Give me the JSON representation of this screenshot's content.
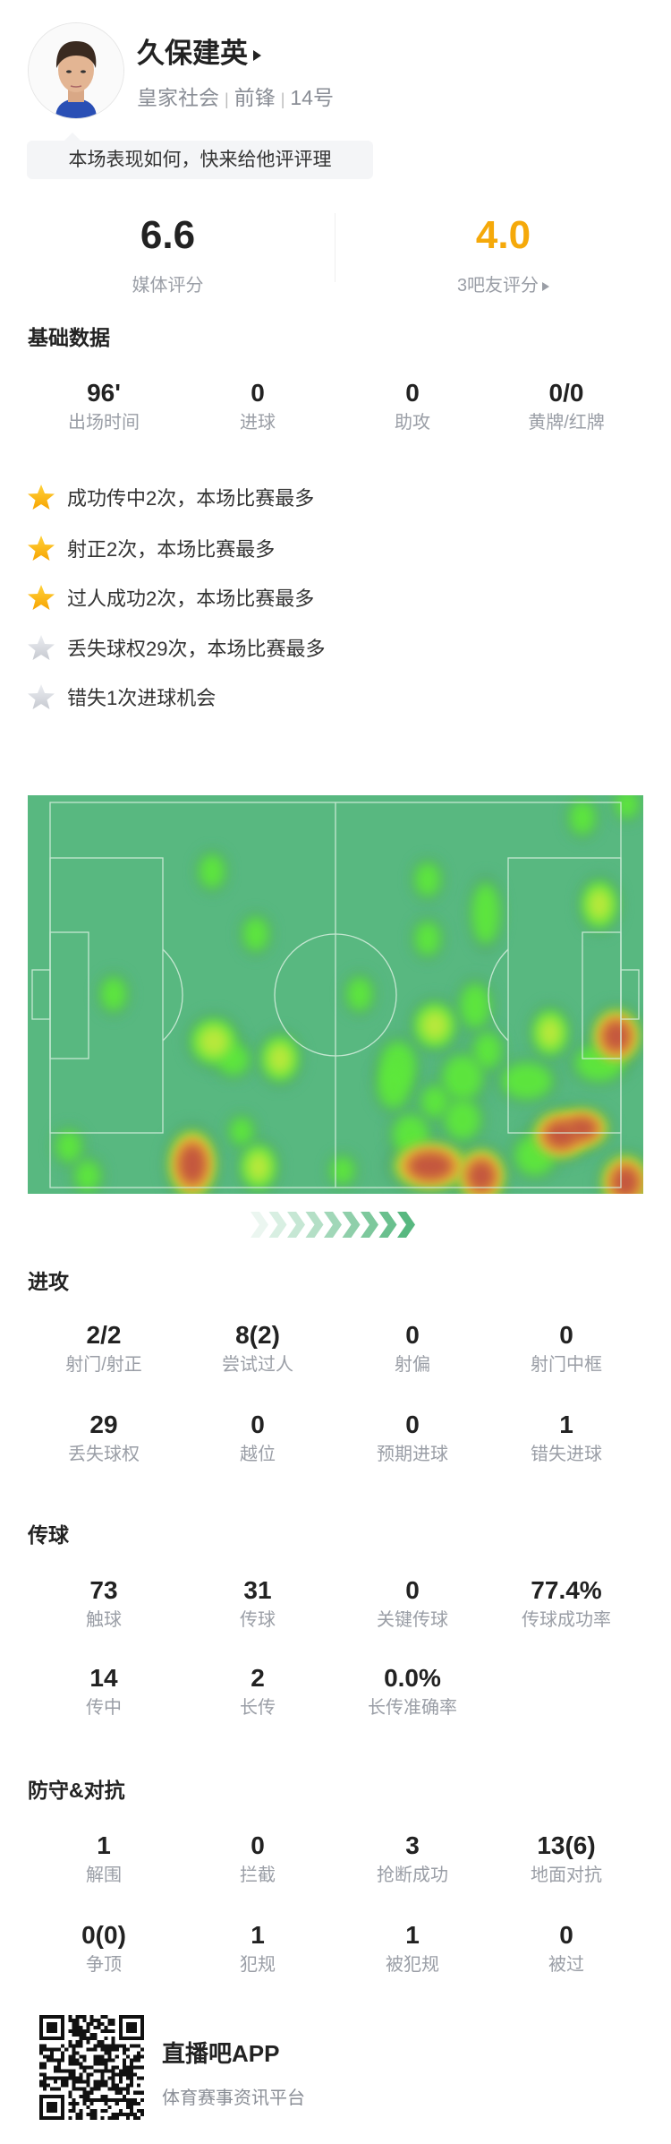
{
  "player": {
    "name": "久保建英",
    "team": "皇家社会",
    "position": "前锋",
    "number": "14号",
    "prompt": "本场表现如何，快来给他评评理"
  },
  "ratings": {
    "media": {
      "value": "6.6",
      "label": "媒体评分"
    },
    "fans": {
      "value": "4.0",
      "label": "3吧友评分",
      "color": "#f5a90a"
    }
  },
  "basic": {
    "title": "基础数据",
    "items": [
      {
        "value": "96'",
        "label": "出场时间"
      },
      {
        "value": "0",
        "label": "进球"
      },
      {
        "value": "0",
        "label": "助攻"
      },
      {
        "value": "0/0",
        "label": "黄牌/红牌"
      }
    ]
  },
  "highlights": [
    {
      "text": "成功传中2次，本场比赛最多",
      "star": "gold"
    },
    {
      "text": "射正2次，本场比赛最多",
      "star": "gold"
    },
    {
      "text": "过人成功2次，本场比赛最多",
      "star": "gold"
    },
    {
      "text": "丢失球权29次，本场比赛最多",
      "star": "grey"
    },
    {
      "text": "错失1次进球机会",
      "star": "grey"
    }
  ],
  "heatmap": {
    "pitch_color": "#58b880",
    "attack_direction": "right"
  },
  "attack": {
    "title": "进攻",
    "items": [
      {
        "value": "2/2",
        "label": "射门/射正"
      },
      {
        "value": "8(2)",
        "label": "尝试过人"
      },
      {
        "value": "0",
        "label": "射偏"
      },
      {
        "value": "0",
        "label": "射门中框"
      },
      {
        "value": "29",
        "label": "丢失球权"
      },
      {
        "value": "0",
        "label": "越位"
      },
      {
        "value": "0",
        "label": "预期进球"
      },
      {
        "value": "1",
        "label": "错失进球"
      }
    ]
  },
  "passing": {
    "title": "传球",
    "items": [
      {
        "value": "73",
        "label": "触球"
      },
      {
        "value": "31",
        "label": "传球"
      },
      {
        "value": "0",
        "label": "关键传球"
      },
      {
        "value": "77.4%",
        "label": "传球成功率"
      },
      {
        "value": "14",
        "label": "传中"
      },
      {
        "value": "2",
        "label": "长传"
      },
      {
        "value": "0.0%",
        "label": "长传准确率"
      }
    ]
  },
  "defense": {
    "title": "防守&对抗",
    "items": [
      {
        "value": "1",
        "label": "解围"
      },
      {
        "value": "0",
        "label": "拦截"
      },
      {
        "value": "3",
        "label": "抢断成功"
      },
      {
        "value": "13(6)",
        "label": "地面对抗"
      },
      {
        "value": "0(0)",
        "label": "争顶"
      },
      {
        "value": "1",
        "label": "犯规"
      },
      {
        "value": "1",
        "label": "被犯规"
      },
      {
        "value": "0",
        "label": "被过"
      }
    ]
  },
  "footer": {
    "app_name": "直播吧APP",
    "tagline": "体育赛事资讯平台"
  }
}
